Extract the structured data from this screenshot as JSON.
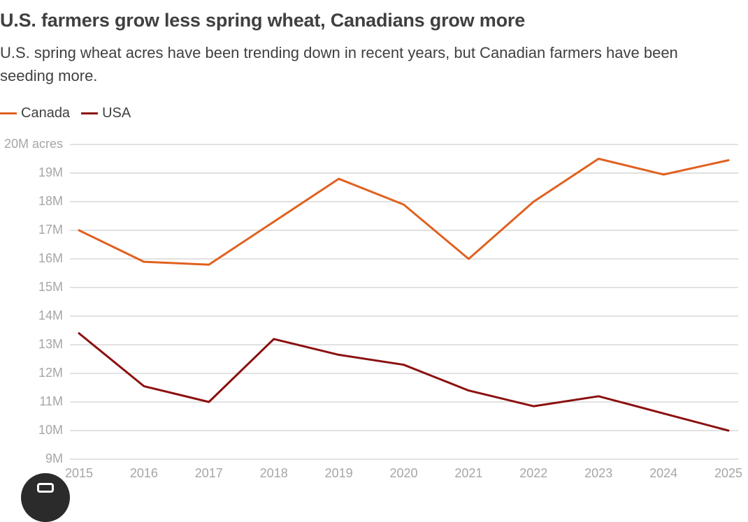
{
  "chart_data": {
    "type": "line",
    "title": "U.S. farmers grow less spring wheat, Canadians grow more",
    "subtitle": "U.S. spring wheat acres have been trending down in recent years, but Canadian farmers have been seeding more.",
    "x": [
      2015,
      2016,
      2017,
      2018,
      2019,
      2020,
      2021,
      2022,
      2023,
      2024,
      2025
    ],
    "series": [
      {
        "name": "Canada",
        "color": "#e0611f",
        "values": [
          17.0,
          15.9,
          15.8,
          17.3,
          18.8,
          17.9,
          16.0,
          18.0,
          19.5,
          18.95,
          19.45
        ]
      },
      {
        "name": "USA",
        "color": "#8b0f0f",
        "values": [
          13.4,
          11.55,
          11.0,
          13.2,
          12.65,
          12.3,
          11.4,
          10.85,
          11.2,
          10.6,
          10.0
        ]
      }
    ],
    "ylim": [
      9,
      20
    ],
    "yticks": [
      9,
      10,
      11,
      12,
      13,
      14,
      15,
      16,
      17,
      18,
      19,
      20
    ],
    "ytick_labels": [
      "9M",
      "10M",
      "11M",
      "12M",
      "13M",
      "14M",
      "15M",
      "16M",
      "17M",
      "18M",
      "19M",
      "20M acres"
    ],
    "xtick_labels": [
      "2015",
      "2016",
      "2017",
      "2018",
      "2019",
      "2020",
      "2021",
      "2022",
      "2023",
      "2024",
      "2025"
    ],
    "grid": true,
    "legend_position": "top-left"
  },
  "overlay": {
    "icon": "camera-icon"
  }
}
